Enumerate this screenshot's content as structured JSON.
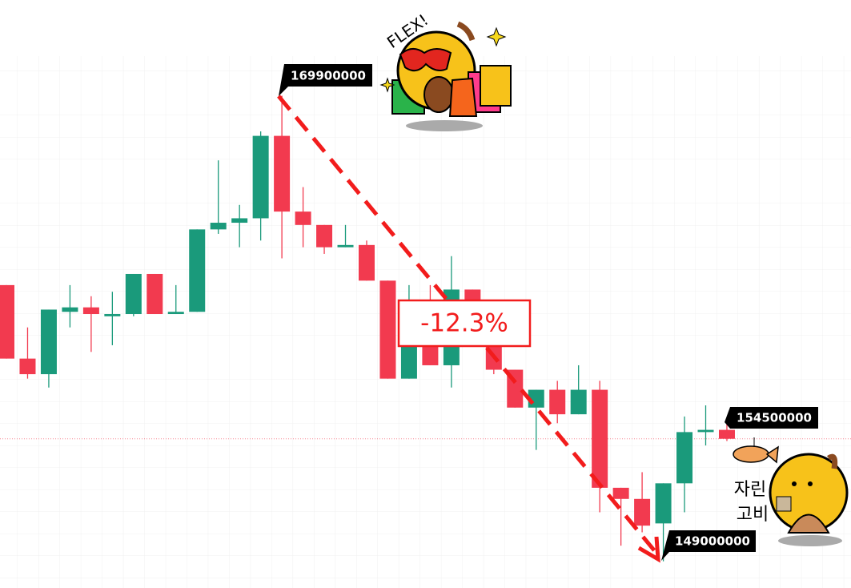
{
  "chart_data": {
    "type": "candlestick",
    "open": [
      161400000,
      158100000,
      157400000,
      160200000,
      160400000,
      160000000,
      160100000,
      161900000,
      160100000,
      160200000,
      163900000,
      164200000,
      164400000,
      168100000,
      164700000,
      164100000,
      163100000,
      163200000,
      161600000,
      157200000,
      159600000,
      157800000,
      161200000,
      158800000,
      157600000,
      155900000,
      156700000,
      155600000,
      156700000,
      152300000,
      151800000,
      150700000,
      152500000,
      154800000,
      154900000
    ],
    "high": [
      161400000,
      159500000,
      160300000,
      161400000,
      160900000,
      161100000,
      161900000,
      161900000,
      161400000,
      163900000,
      167000000,
      165000000,
      168300000,
      169900000,
      165800000,
      164100000,
      164100000,
      163400000,
      161600000,
      161400000,
      161400000,
      162700000,
      161200000,
      159100000,
      157600000,
      156700000,
      157100000,
      157800000,
      157100000,
      152300000,
      153000000,
      152500000,
      155500000,
      156000000,
      155300000
    ],
    "low": [
      158100000,
      157200000,
      156800000,
      159500000,
      158400000,
      158700000,
      160000000,
      160100000,
      160100000,
      160200000,
      163700000,
      163100000,
      163400000,
      162600000,
      163100000,
      162800000,
      163100000,
      161600000,
      157200000,
      157200000,
      157800000,
      156800000,
      159500000,
      157400000,
      155900000,
      154000000,
      155200000,
      155600000,
      151200000,
      149700000,
      150300000,
      149000000,
      151200000,
      154200000,
      154400000
    ],
    "close": [
      158100000,
      157400000,
      160300000,
      160400000,
      160100000,
      160100000,
      161900000,
      160100000,
      160200000,
      163900000,
      164200000,
      164400000,
      168100000,
      164700000,
      164100000,
      163100000,
      163200000,
      161600000,
      157200000,
      159500000,
      157800000,
      161200000,
      159500000,
      157600000,
      155900000,
      156700000,
      155600000,
      156700000,
      152300000,
      151800000,
      150600000,
      152500000,
      154800000,
      154900000,
      154500000
    ],
    "up_color": "#1a9a7b",
    "down_color": "#f23a4f",
    "ylim": [
      147800000,
      174200000
    ],
    "annotations": {
      "change": "-12.3%",
      "flex": "FLEX!",
      "word1": "자린",
      "word2": "고비"
    }
  }
}
